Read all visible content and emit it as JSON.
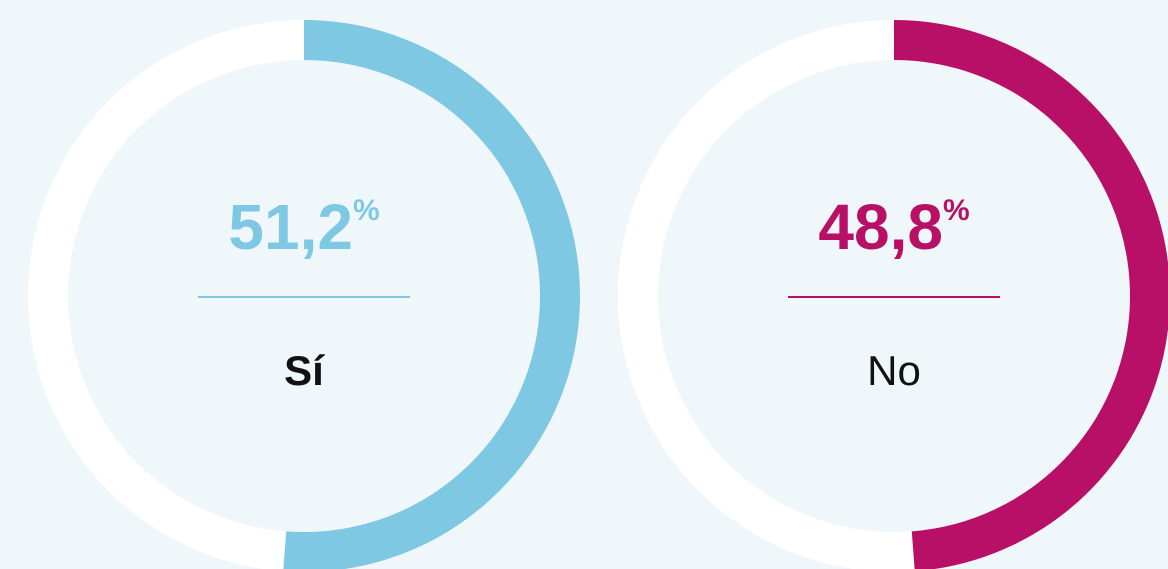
{
  "chart_data": [
    {
      "type": "pie",
      "categories": [
        "Sí"
      ],
      "values": [
        51.2
      ],
      "value_labels": [
        "51,2"
      ],
      "unit": "%",
      "color": "#7ec8e3",
      "label_weight": "bold"
    },
    {
      "type": "pie",
      "categories": [
        "No"
      ],
      "values": [
        48.8
      ],
      "value_labels": [
        "48,8"
      ],
      "unit": "%",
      "color": "#b80f67",
      "label_weight": "normal"
    }
  ]
}
